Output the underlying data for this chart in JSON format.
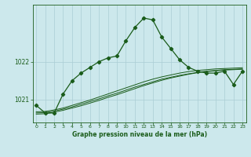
{
  "xlabel": "Graphe pression niveau de la mer (hPa)",
  "bg_color": "#cce8ec",
  "grid_color": "#aacdd4",
  "line_color": "#1a5c1a",
  "x_ticks": [
    0,
    1,
    2,
    3,
    4,
    5,
    6,
    7,
    8,
    9,
    10,
    11,
    12,
    13,
    14,
    15,
    16,
    17,
    18,
    19,
    20,
    21,
    22,
    23
  ],
  "yticks": [
    1021,
    1022
  ],
  "ylim": [
    1020.4,
    1023.5
  ],
  "xlim": [
    -0.4,
    23.4
  ],
  "main_y": [
    1020.85,
    1020.65,
    1020.65,
    1021.15,
    1021.5,
    1021.7,
    1021.85,
    1022.0,
    1022.1,
    1022.15,
    1022.55,
    1022.9,
    1023.15,
    1023.1,
    1022.65,
    1022.35,
    1022.05,
    1021.85,
    1021.75,
    1021.7,
    1021.7,
    1021.75,
    1021.4,
    1021.75
  ],
  "smooth1_y": [
    1020.62,
    1020.63,
    1020.67,
    1020.72,
    1020.78,
    1020.84,
    1020.91,
    1020.98,
    1021.06,
    1021.13,
    1021.21,
    1021.29,
    1021.37,
    1021.44,
    1021.51,
    1021.57,
    1021.62,
    1021.67,
    1021.71,
    1021.74,
    1021.76,
    1021.78,
    1021.79,
    1021.8
  ],
  "smooth2_y": [
    1020.65,
    1020.66,
    1020.7,
    1020.75,
    1020.81,
    1020.88,
    1020.95,
    1021.02,
    1021.1,
    1021.17,
    1021.25,
    1021.33,
    1021.4,
    1021.47,
    1021.54,
    1021.59,
    1021.64,
    1021.68,
    1021.72,
    1021.75,
    1021.77,
    1021.79,
    1021.8,
    1021.81
  ],
  "smooth3_y": [
    1020.68,
    1020.69,
    1020.73,
    1020.78,
    1020.85,
    1020.92,
    1020.99,
    1021.07,
    1021.15,
    1021.23,
    1021.31,
    1021.39,
    1021.47,
    1021.54,
    1021.6,
    1021.65,
    1021.7,
    1021.74,
    1021.77,
    1021.79,
    1021.81,
    1021.82,
    1021.83,
    1021.84
  ]
}
